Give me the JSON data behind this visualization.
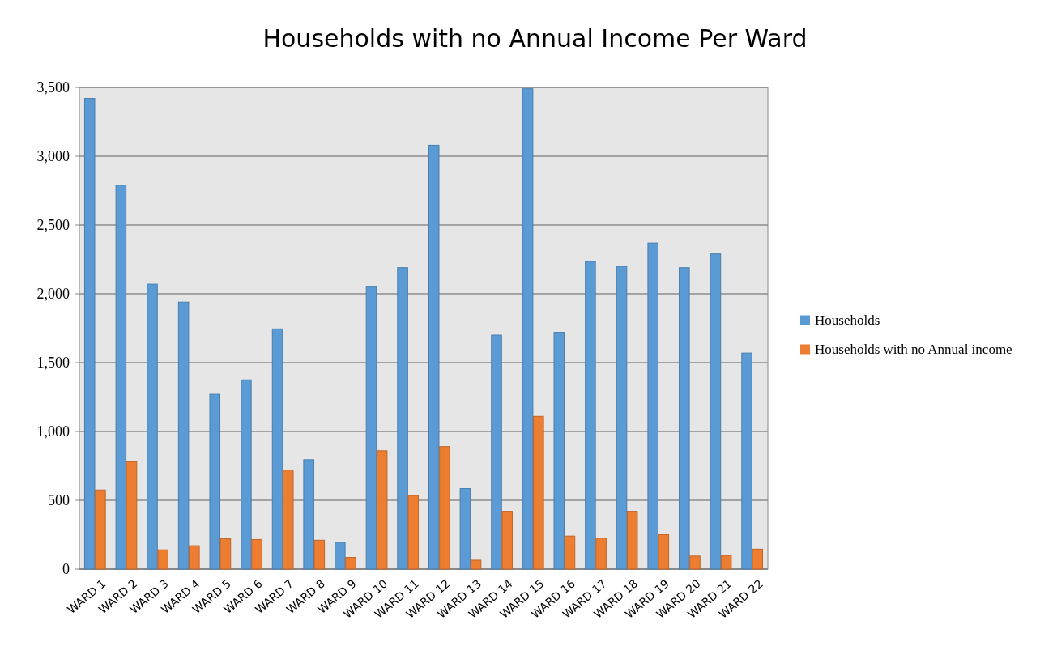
{
  "chart_data": {
    "type": "bar",
    "title": "Households with no Annual Income Per Ward",
    "categories": [
      "WARD 1",
      "WARD 2",
      "WARD 3",
      "WARD 4",
      "WARD 5",
      "WARD 6",
      "WARD 7",
      "WARD 8",
      "WARD 9",
      "WARD 10",
      "WARD 11",
      "WARD 12",
      "WARD 13",
      "WARD 14",
      "WARD 15",
      "WARD 16",
      "WARD 17",
      "WARD 18",
      "WARD 19",
      "WARD 20",
      "WARD 21",
      "WARD 22"
    ],
    "series": [
      {
        "name": "Households",
        "color": "#5b9bd5",
        "values": [
          3420,
          2790,
          2070,
          1940,
          1270,
          1375,
          1745,
          795,
          195,
          2055,
          2190,
          3080,
          585,
          1700,
          3490,
          1720,
          2235,
          2200,
          2370,
          2190,
          2290,
          1570
        ]
      },
      {
        "name": "Households with no Annual income",
        "color": "#ed7d31",
        "values": [
          575,
          780,
          140,
          170,
          220,
          215,
          720,
          210,
          85,
          860,
          535,
          890,
          65,
          420,
          1110,
          240,
          225,
          420,
          250,
          95,
          100,
          145
        ]
      }
    ],
    "ylim": [
      0,
      3500
    ],
    "yticks": [
      {
        "value": 0,
        "label": "0"
      },
      {
        "value": 500,
        "label": "500"
      },
      {
        "value": 1000,
        "label": "1,000"
      },
      {
        "value": 1500,
        "label": "1,500"
      },
      {
        "value": 2000,
        "label": "2,000"
      },
      {
        "value": 2500,
        "label": "2,500"
      },
      {
        "value": 3000,
        "label": "3,000"
      },
      {
        "value": 3500,
        "label": "3,500"
      }
    ],
    "grid": "y",
    "legend": "right"
  }
}
